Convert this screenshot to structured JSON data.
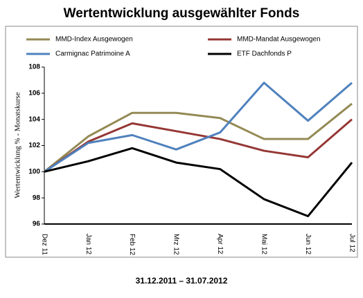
{
  "chart_data": {
    "type": "line",
    "title": "Wertentwicklung ausgewählter Fonds",
    "subtitle": "31.12.2011 – 31.07.2012",
    "y_label": "Wertentwicklung % - Monatskurse",
    "categories": [
      "Dez 11",
      "Jan 12",
      "Feb 12",
      "Mrz 12",
      "Apr 12",
      "Mai 12",
      "Jun 12",
      "Jul 12"
    ],
    "series": [
      {
        "name": "MMD-Index Ausgewogen",
        "color": "#948a54",
        "values": [
          100,
          102.7,
          104.5,
          104.5,
          104.1,
          102.5,
          102.5,
          105.2
        ]
      },
      {
        "name": "MMD-Mandat Ausgewogen",
        "color": "#953735",
        "values": [
          100,
          102.3,
          103.7,
          103.1,
          102.5,
          101.6,
          101.1,
          104.0
        ]
      },
      {
        "name": "Carmignac Patrimoine A",
        "color": "#4f81bd",
        "values": [
          100,
          102.2,
          102.8,
          101.7,
          103.0,
          106.8,
          103.9,
          106.8
        ]
      },
      {
        "name": "ETF Dachfonds P",
        "color": "#000000",
        "values": [
          100,
          100.8,
          101.8,
          100.7,
          100.2,
          97.9,
          96.6,
          100.7
        ]
      }
    ],
    "ylim": [
      96,
      108
    ],
    "yticks": [
      96,
      98,
      100,
      102,
      104,
      106,
      108
    ],
    "grid": false,
    "legend": "top"
  }
}
